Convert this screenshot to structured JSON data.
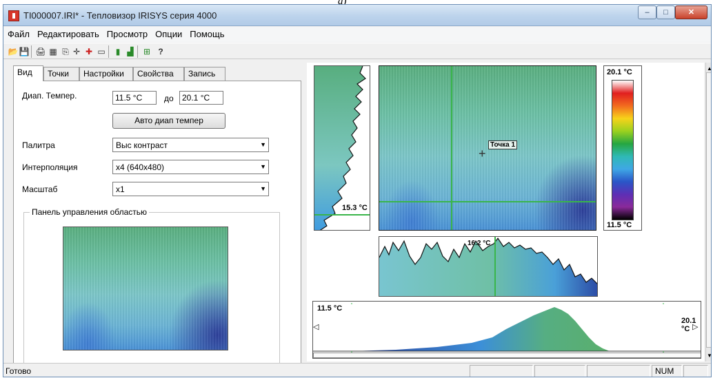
{
  "caption": "а)",
  "window": {
    "title": "TI000007.IRI* - Тепловизор IRISYS серия 4000",
    "controls": {
      "minimize": "‒",
      "maximize": "□",
      "close": "✕"
    }
  },
  "menu": [
    "Файл",
    "Редактировать",
    "Просмотр",
    "Опции",
    "Помощь"
  ],
  "toolbar": {
    "icons": [
      "open-icon",
      "save-icon",
      "print-icon",
      "properties-icon",
      "export-icon",
      "crosshair-icon",
      "add-point-icon",
      "rectangle-icon",
      "bar-chart-icon",
      "histogram-icon",
      "profile-icon",
      "help-icon"
    ],
    "glyphs": [
      "📂",
      "💾",
      "🖨",
      "▦",
      "⎘",
      "✛",
      "✚",
      "▭",
      "▮",
      "▟",
      "⊞",
      "?"
    ]
  },
  "tabs": [
    "Вид",
    "Точки",
    "Настройки",
    "Свойства",
    "Запись"
  ],
  "view": {
    "temp_range_label": "Диап. Темпер.",
    "temp_min": "11.5 °C",
    "to_label": "до",
    "temp_max": "20.1 °C",
    "auto_button": "Авто диап темпер",
    "palette_label": "Палитра",
    "palette_value": "Выс контраст",
    "interp_label": "Интерполяция",
    "interp_value": "x4 (640x480)",
    "scale_label": "Масштаб",
    "scale_value": "x1",
    "area_panel_title": "Панель управления областью"
  },
  "image": {
    "point_label": "Точка 1",
    "vprofile_temp": "15.3 °C",
    "hprofile_temp": "16.2 °C",
    "scale_max": "20.1 °C",
    "scale_min": "11.5 °C",
    "hist_min": "11.5 °C",
    "hist_max": "20.1 °C"
  },
  "colors": {
    "palette": [
      "#ffffff",
      "#e11f1f",
      "#f26b1f",
      "#f7d21a",
      "#9bd11f",
      "#26a641",
      "#2fb9b5",
      "#3fa7e5",
      "#2a56c8",
      "#5d2fb5",
      "#8a2a9a",
      "#000000"
    ]
  },
  "status": {
    "text": "Готово",
    "num": "NUM"
  }
}
